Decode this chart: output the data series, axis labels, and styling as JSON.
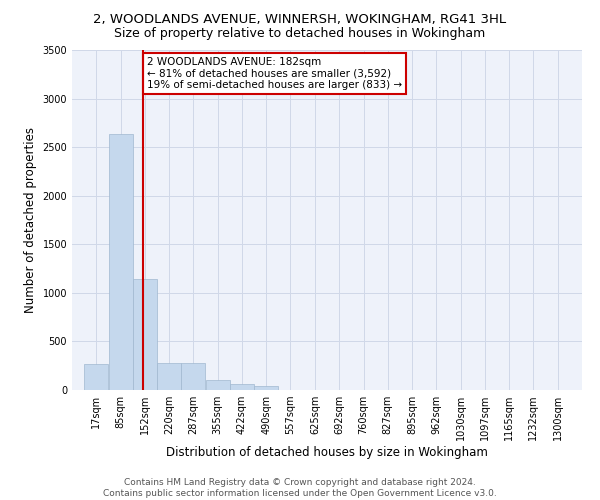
{
  "title": "2, WOODLANDS AVENUE, WINNERSH, WOKINGHAM, RG41 3HL",
  "subtitle": "Size of property relative to detached houses in Wokingham",
  "xlabel": "Distribution of detached houses by size in Wokingham",
  "ylabel": "Number of detached properties",
  "footer_line1": "Contains HM Land Registry data © Crown copyright and database right 2024.",
  "footer_line2": "Contains public sector information licensed under the Open Government Licence v3.0.",
  "bar_edges": [
    17,
    85,
    152,
    220,
    287,
    355,
    422,
    490,
    557,
    625,
    692,
    760,
    827,
    895,
    962,
    1030,
    1097,
    1165,
    1232,
    1300,
    1367
  ],
  "bar_heights": [
    270,
    2640,
    1140,
    280,
    280,
    100,
    65,
    40,
    0,
    0,
    0,
    0,
    0,
    0,
    0,
    0,
    0,
    0,
    0,
    0
  ],
  "bar_color": "#c5d8ed",
  "bar_edgecolor": "#a0b8d0",
  "property_size": 182,
  "vline_color": "#cc0000",
  "annotation_box_edgecolor": "#cc0000",
  "ylim": [
    0,
    3500
  ],
  "yticks": [
    0,
    500,
    1000,
    1500,
    2000,
    2500,
    3000,
    3500
  ],
  "grid_color": "#d0d8e8",
  "bg_color": "#eef2fa",
  "title_fontsize": 9.5,
  "subtitle_fontsize": 9,
  "axis_label_fontsize": 8.5,
  "tick_fontsize": 7,
  "annotation_fontsize": 7.5,
  "footer_fontsize": 6.5
}
